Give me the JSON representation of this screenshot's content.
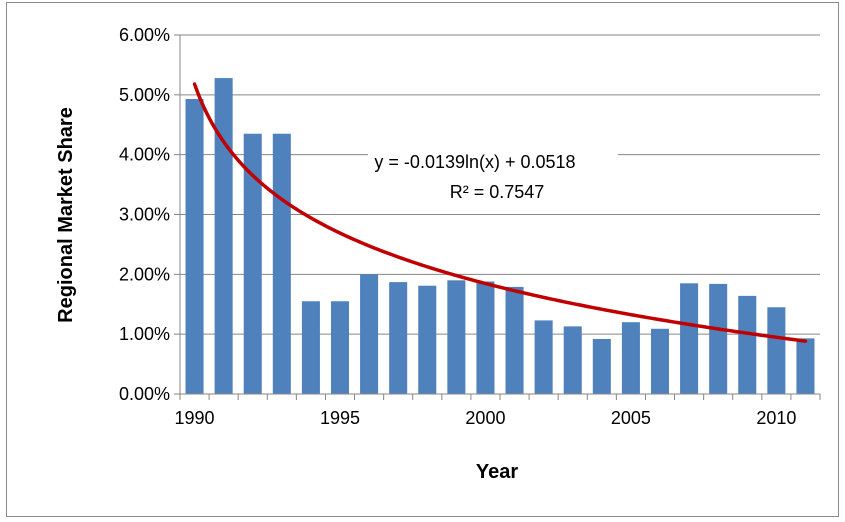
{
  "chart_data": {
    "type": "bar",
    "title": "",
    "xlabel": "Year",
    "ylabel": "Regional Market Share",
    "categories": [
      1990,
      1991,
      1992,
      1993,
      1994,
      1995,
      1996,
      1997,
      1998,
      1999,
      2000,
      2001,
      2002,
      2003,
      2004,
      2005,
      2006,
      2007,
      2008,
      2009,
      2010,
      2011
    ],
    "values": [
      0.0493,
      0.0528,
      0.0435,
      0.0435,
      0.0155,
      0.0155,
      0.02,
      0.0187,
      0.0181,
      0.019,
      0.0188,
      0.0179,
      0.0123,
      0.0113,
      0.0092,
      0.012,
      0.0109,
      0.0185,
      0.0184,
      0.0164,
      0.0145,
      0.0093
    ],
    "x_tick_labels": [
      "1990",
      "1995",
      "2000",
      "2005",
      "2010"
    ],
    "y_tick_labels": [
      "0.00%",
      "1.00%",
      "2.00%",
      "3.00%",
      "4.00%",
      "5.00%",
      "6.00%"
    ],
    "ylim": [
      0,
      0.06
    ],
    "grid": true,
    "colors": {
      "bar": "#4f81bd",
      "trendline": "#c00000",
      "grid": "#868686"
    },
    "trendline": {
      "type": "logarithmic",
      "a": -0.0139,
      "b": 0.0518,
      "equation": "y = -0.0139ln(x) + 0.0518",
      "r_squared": "R² = 0.7547"
    }
  }
}
